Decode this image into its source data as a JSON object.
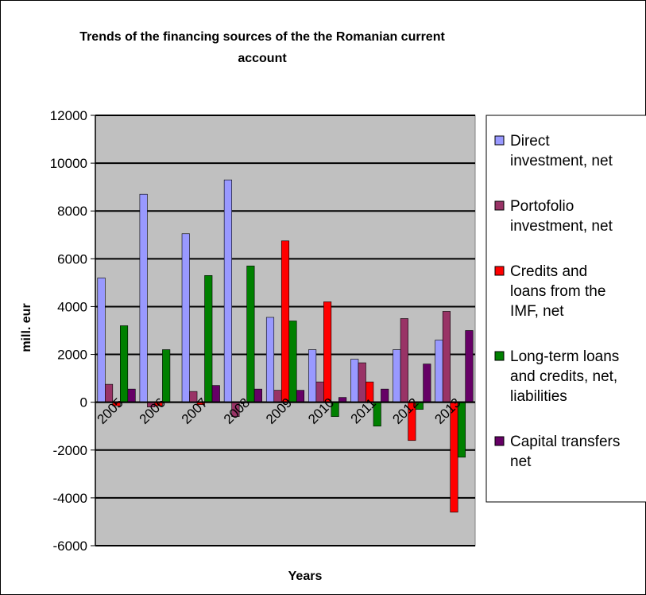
{
  "chart_data": {
    "type": "bar",
    "title_lines": [
      "Trends of the financing sources of the the Romanian current",
      "account"
    ],
    "xlabel": "Years",
    "ylabel": "mill. eur",
    "ylim": [
      -6000,
      12000
    ],
    "yticks": [
      -6000,
      -4000,
      -2000,
      0,
      2000,
      4000,
      6000,
      8000,
      10000,
      12000
    ],
    "categories": [
      "2005",
      "2006",
      "2007",
      "2008",
      "2009",
      "2010",
      "2011",
      "2012",
      "2013"
    ],
    "series": [
      {
        "name": "Direct investment, net",
        "legend_lines": [
          "Direct",
          "investment, net"
        ],
        "color": "#9999ff",
        "values": [
          5200,
          8700,
          7050,
          9300,
          3550,
          2200,
          1800,
          2200,
          2600
        ]
      },
      {
        "name": "Portofolio investment, net",
        "legend_lines": [
          "Portofolio",
          "investment, net"
        ],
        "color": "#993366",
        "values": [
          750,
          -200,
          450,
          -600,
          500,
          850,
          1650,
          3500,
          3800
        ]
      },
      {
        "name": "Credits and loans from the IMF, net",
        "legend_lines": [
          "Credits and",
          "loans from the",
          "IMF, net"
        ],
        "color": "#ff0000",
        "values": [
          -150,
          -150,
          -100,
          0,
          6750,
          4200,
          850,
          -1600,
          -4600
        ]
      },
      {
        "name": "Long-term loans and credits, net, liabilities",
        "legend_lines": [
          "Long-term loans",
          "and credits, net,",
          "liabilities"
        ],
        "color": "#008000",
        "values": [
          3200,
          2200,
          5300,
          5700,
          3400,
          -600,
          -1000,
          -300,
          -2300
        ]
      },
      {
        "name": "Capital transfers net",
        "legend_lines": [
          "Capital transfers",
          "net"
        ],
        "color": "#660066",
        "values": [
          550,
          0,
          700,
          550,
          500,
          200,
          550,
          1600,
          3000
        ]
      }
    ],
    "grid": true,
    "legend_position": "right"
  }
}
